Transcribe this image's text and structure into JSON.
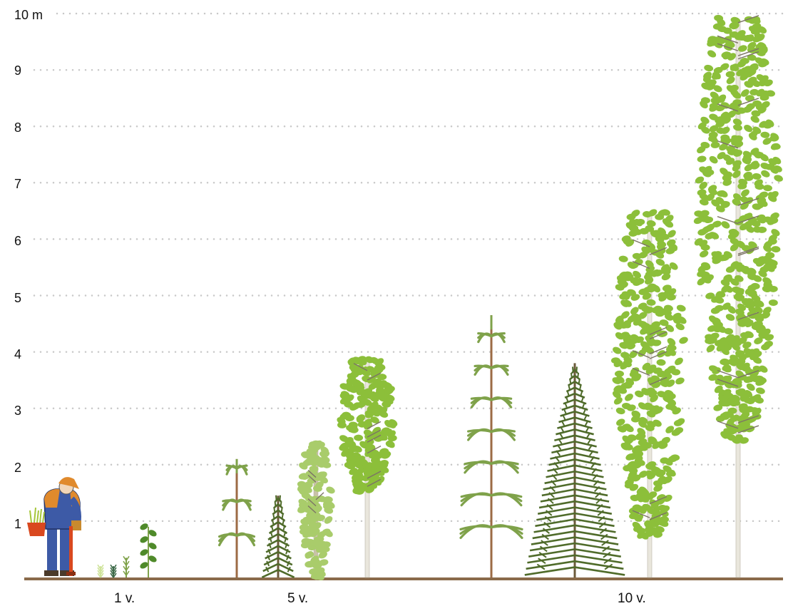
{
  "y_axis": {
    "unit_label": "10 m",
    "ticks": [
      "1",
      "2",
      "3",
      "4",
      "5",
      "6",
      "7",
      "8",
      "9"
    ],
    "max": 10
  },
  "x_axis": {
    "labels": [
      "1 v.",
      "5 v.",
      "10 v."
    ]
  },
  "colors": {
    "grid_dots": "#c8c8c8",
    "ground": "#8a6a4a",
    "pine": "#7fa24a",
    "spruce": "#4f6b2a",
    "birch_leaf": "#8cbf3a",
    "aspen_leaf": "#a9cc6b",
    "trunk_brown": "#9c6b45",
    "birch_bark": "#e9e6dc",
    "worker_blue": "#3d5aa6",
    "worker_orange": "#e08a2c",
    "bucket": "#d9481f"
  },
  "icons": [
    "forest-worker-icon",
    "pine-icon",
    "spruce-icon",
    "birch-icon",
    "aspen-icon",
    "seedling-icon"
  ],
  "trees": [
    {
      "kind": "seedling-grass",
      "age": "1 v.",
      "height_m": 0.2
    },
    {
      "kind": "seedling-spruce",
      "age": "1 v.",
      "height_m": 0.2
    },
    {
      "kind": "seedling-pine",
      "age": "1 v.",
      "height_m": 0.35
    },
    {
      "kind": "seedling-birch",
      "age": "1 v.",
      "height_m": 0.9
    },
    {
      "kind": "pine",
      "age": "5 v.",
      "height_m": 2.1
    },
    {
      "kind": "spruce",
      "age": "5 v.",
      "height_m": 1.45
    },
    {
      "kind": "aspen",
      "age": "5 v.",
      "height_m": 2.45
    },
    {
      "kind": "birch",
      "age": "5 v.",
      "height_m": 3.95
    },
    {
      "kind": "pine",
      "age": "10 v.",
      "height_m": 4.65
    },
    {
      "kind": "spruce",
      "age": "10 v.",
      "height_m": 3.8
    },
    {
      "kind": "birch",
      "age": "10 v.",
      "height_m": 6.55
    },
    {
      "kind": "birch",
      "age": "10 v.",
      "height_m": 10.0
    }
  ]
}
